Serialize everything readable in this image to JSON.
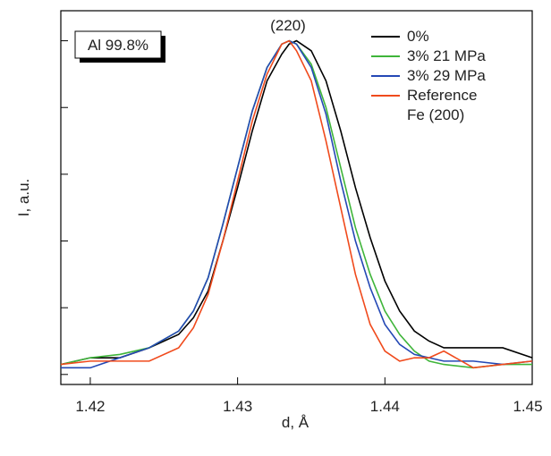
{
  "chart_data": {
    "type": "line",
    "xlabel": "d, Å",
    "ylabel": "I, a.u.",
    "annotations": [
      "(220)",
      "Al 99.8%"
    ],
    "xlim": [
      1.418,
      1.45
    ],
    "xticks": [
      1.42,
      1.43,
      1.44,
      1.45
    ],
    "ylim": [
      -0.03,
      1.09
    ],
    "yticks": [
      0,
      0.2,
      0.4,
      0.6,
      0.8,
      1.0
    ],
    "ytick_labels": false,
    "legend": "upper right",
    "x": [
      1.418,
      1.42,
      1.422,
      1.424,
      1.426,
      1.427,
      1.428,
      1.429,
      1.43,
      1.431,
      1.432,
      1.433,
      1.4335,
      1.434,
      1.435,
      1.436,
      1.437,
      1.438,
      1.439,
      1.44,
      1.441,
      1.442,
      1.443,
      1.444,
      1.446,
      1.448,
      1.45
    ],
    "series": [
      {
        "name": "0%",
        "color": "#000000",
        "values": [
          0.03,
          0.05,
          0.05,
          0.08,
          0.12,
          0.17,
          0.25,
          0.4,
          0.56,
          0.73,
          0.88,
          0.96,
          0.99,
          1.0,
          0.97,
          0.88,
          0.73,
          0.56,
          0.41,
          0.28,
          0.19,
          0.13,
          0.1,
          0.08,
          0.08,
          0.08,
          0.05
        ]
      },
      {
        "name": "3% 21 MPa",
        "color": "#3fb53a",
        "values": [
          0.03,
          0.05,
          0.06,
          0.08,
          0.13,
          0.19,
          0.29,
          0.45,
          0.62,
          0.79,
          0.92,
          0.99,
          1.0,
          0.99,
          0.93,
          0.8,
          0.62,
          0.44,
          0.3,
          0.19,
          0.12,
          0.07,
          0.04,
          0.03,
          0.02,
          0.03,
          0.03
        ]
      },
      {
        "name": "3% 29 MPa",
        "color": "#2448b5",
        "values": [
          0.02,
          0.02,
          0.05,
          0.08,
          0.13,
          0.19,
          0.29,
          0.45,
          0.62,
          0.79,
          0.92,
          0.99,
          1.0,
          0.99,
          0.92,
          0.78,
          0.58,
          0.4,
          0.26,
          0.15,
          0.09,
          0.06,
          0.05,
          0.04,
          0.04,
          0.03,
          0.04
        ]
      },
      {
        "name": "Reference\nFe (200)",
        "color": "#f04a1c",
        "values": [
          0.03,
          0.04,
          0.04,
          0.04,
          0.08,
          0.14,
          0.24,
          0.4,
          0.58,
          0.76,
          0.9,
          0.99,
          1.0,
          0.97,
          0.88,
          0.7,
          0.5,
          0.3,
          0.15,
          0.07,
          0.04,
          0.05,
          0.05,
          0.07,
          0.02,
          0.03,
          0.04
        ]
      }
    ]
  }
}
